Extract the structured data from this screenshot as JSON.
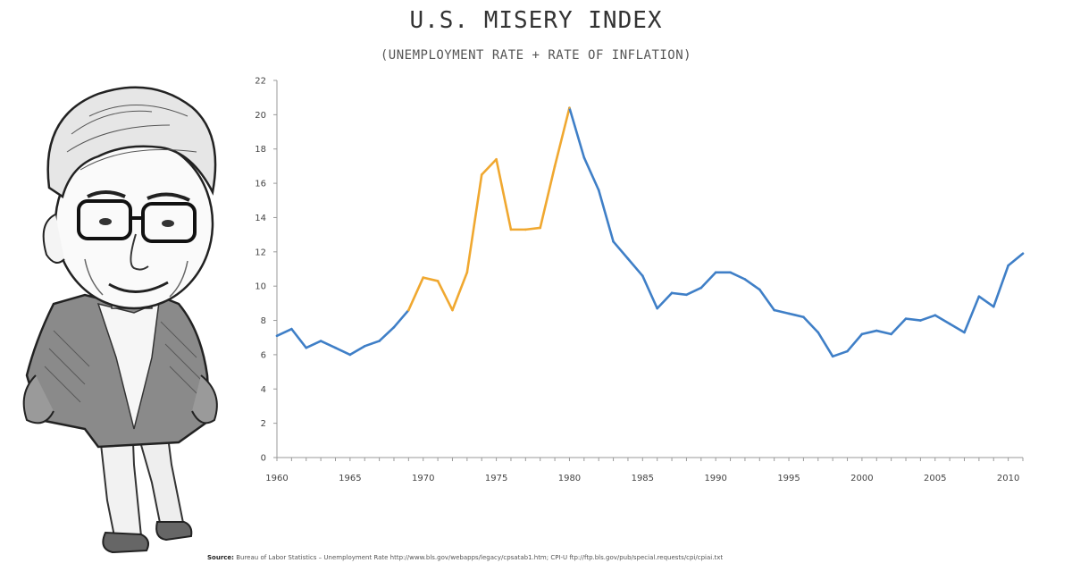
{
  "title": "U.S. MISERY INDEX",
  "subtitle": "(UNEMPLOYMENT RATE + RATE OF INFLATION)",
  "source": {
    "label": "Source:",
    "text": "Bureau of Labor Statistics – Unemployment Rate http://www.bls.gov/webapps/legacy/cpsatab1.htm; CPI-U ftp://ftp.bls.gov/pub/special.requests/cpi/cpiai.txt"
  },
  "colors": {
    "line_default": "#3f7fc7",
    "line_highlight": "#f0a830",
    "axis": "#9a9a9a"
  },
  "chart_data": {
    "type": "line",
    "title": "U.S. MISERY INDEX",
    "subtitle": "(UNEMPLOYMENT RATE + RATE OF INFLATION)",
    "xlabel": "",
    "ylabel": "",
    "xlim": [
      1960,
      2011
    ],
    "ylim": [
      0,
      22
    ],
    "y_ticks": [
      0,
      2,
      4,
      6,
      8,
      10,
      12,
      14,
      16,
      18,
      20,
      22
    ],
    "x_ticks": [
      "1960",
      "1965",
      "1970",
      "1975",
      "1980",
      "1985",
      "1990",
      "1995",
      "2000",
      "2005",
      "2010"
    ],
    "grid": false,
    "highlight_range": [
      1969,
      1980
    ],
    "x": [
      1960,
      1961,
      1962,
      1963,
      1964,
      1965,
      1966,
      1967,
      1968,
      1969,
      1970,
      1971,
      1972,
      1973,
      1974,
      1975,
      1976,
      1977,
      1978,
      1979,
      1980,
      1981,
      1982,
      1983,
      1984,
      1985,
      1986,
      1987,
      1988,
      1989,
      1990,
      1991,
      1992,
      1993,
      1994,
      1995,
      1996,
      1997,
      1998,
      1999,
      2000,
      2001,
      2002,
      2003,
      2004,
      2005,
      2006,
      2007,
      2008,
      2009,
      2010,
      2011
    ],
    "values": [
      7.1,
      7.5,
      6.4,
      6.8,
      6.4,
      6.0,
      6.5,
      6.8,
      7.6,
      8.6,
      10.5,
      10.3,
      8.6,
      10.8,
      16.5,
      17.4,
      13.3,
      13.3,
      13.4,
      17.0,
      20.4,
      17.5,
      15.6,
      12.6,
      11.6,
      10.6,
      8.7,
      9.6,
      9.5,
      9.9,
      10.8,
      10.8,
      10.4,
      9.8,
      8.6,
      8.4,
      8.2,
      7.3,
      5.9,
      6.2,
      7.2,
      7.4,
      7.2,
      8.1,
      8.0,
      8.3,
      7.8,
      7.3,
      9.4,
      8.8,
      11.2,
      11.9
    ]
  }
}
